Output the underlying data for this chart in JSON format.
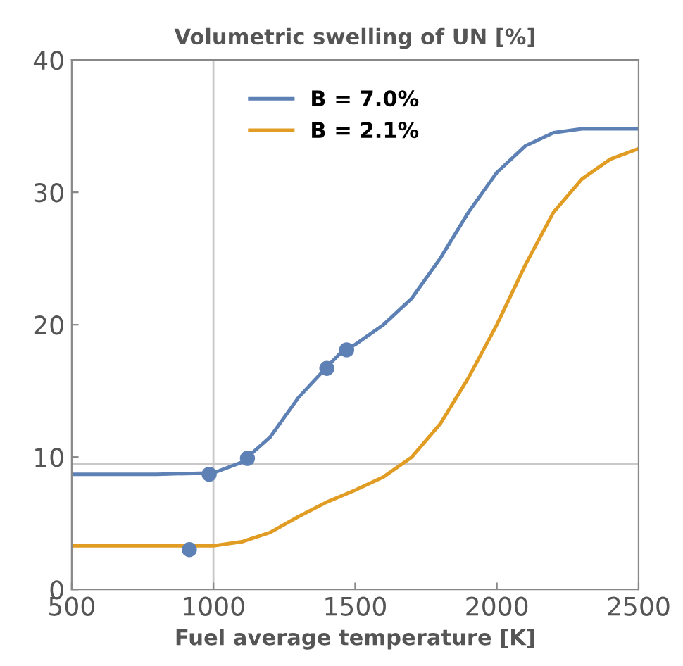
{
  "chart_data": {
    "type": "line",
    "title": "Volumetric swelling of UN [%]",
    "xlabel": "Fuel average temperature [K]",
    "xlim": [
      500,
      2500
    ],
    "ylim": [
      0,
      40
    ],
    "xticks": [
      500,
      1000,
      1500,
      2000,
      2500
    ],
    "yticks": [
      0,
      10,
      20,
      30,
      40
    ],
    "grid": false,
    "legend": "top left",
    "marker": "none",
    "line_style": "solid",
    "ref_lines": [
      {
        "axis": "x",
        "value": 1000,
        "color": "#c8c8c8"
      },
      {
        "axis": "y",
        "value": 9.5,
        "color": "#c8c8c8"
      }
    ],
    "series": [
      {
        "name": "B = 7.0%",
        "color": "#5e81b5",
        "x": [
          500,
          800,
          1000,
          1100,
          1200,
          1300,
          1400,
          1450,
          1500,
          1600,
          1700,
          1800,
          1900,
          2000,
          2100,
          2200,
          2300,
          2400,
          2500
        ],
        "values": [
          8.7,
          8.7,
          8.8,
          9.6,
          11.5,
          14.5,
          16.8,
          17.9,
          18.5,
          20,
          22,
          25,
          28.5,
          31.5,
          33.5,
          34.5,
          34.8,
          34.8,
          34.8
        ]
      },
      {
        "name": "B = 2.1%",
        "color": "#e19c24",
        "x": [
          500,
          800,
          1000,
          1100,
          1200,
          1300,
          1400,
          1500,
          1600,
          1700,
          1800,
          1900,
          2000,
          2100,
          2200,
          2300,
          2400,
          2500
        ],
        "values": [
          3.3,
          3.3,
          3.3,
          3.6,
          4.3,
          5.5,
          6.6,
          7.5,
          8.5,
          10,
          12.5,
          16,
          20,
          24.5,
          28.5,
          31,
          32.5,
          33.3
        ]
      },
      {
        "type": "scatter",
        "color": "#5e81b5",
        "marker": "circle",
        "x": [
          985,
          1120,
          1400,
          1470
        ],
        "values": [
          8.7,
          9.9,
          16.7,
          18.1
        ]
      },
      {
        "type": "scatter",
        "color": "#5e81b5",
        "marker": "circle",
        "x": [
          915
        ],
        "values": [
          3.0
        ]
      }
    ]
  }
}
